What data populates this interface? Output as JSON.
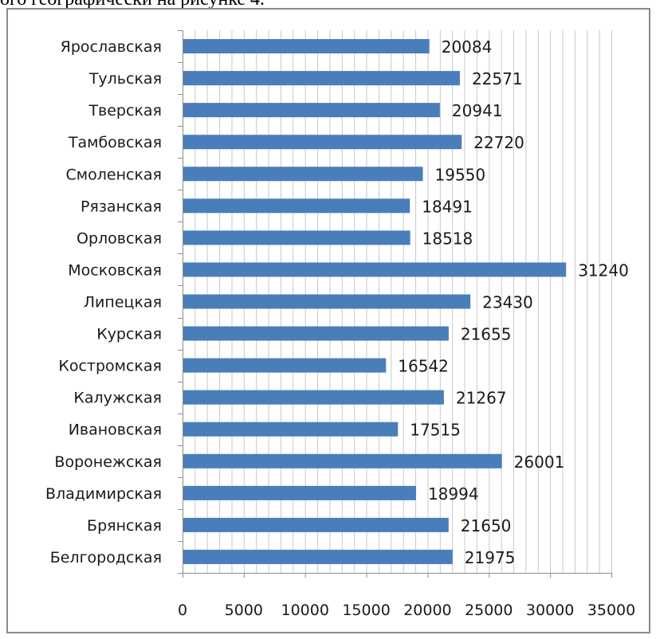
{
  "caption": "ого географически на рисунке 4.",
  "chart_data": {
    "type": "bar",
    "orientation": "horizontal",
    "categories": [
      "Белгородская",
      "Брянская",
      "Владимирская",
      "Воронежская",
      "Ивановская",
      "Калужская",
      "Костромская",
      "Курская",
      "Липецкая",
      "Московская",
      "Орловская",
      "Рязанская",
      "Смоленская",
      "Тамбовская",
      "Тверская",
      "Тульская",
      "Ярославская"
    ],
    "values": [
      21975,
      21650,
      18994,
      26001,
      17515,
      21267,
      16542,
      21655,
      23430,
      31240,
      18518,
      18491,
      19550,
      22720,
      20941,
      22571,
      20084
    ],
    "xlim": [
      0,
      35000
    ],
    "xticks": [
      0,
      5000,
      10000,
      15000,
      20000,
      25000,
      30000,
      35000
    ],
    "minor_gridlines": true,
    "bar_color": "#4a7ebb",
    "data_labels": true,
    "title": "",
    "xlabel": "",
    "ylabel": ""
  }
}
